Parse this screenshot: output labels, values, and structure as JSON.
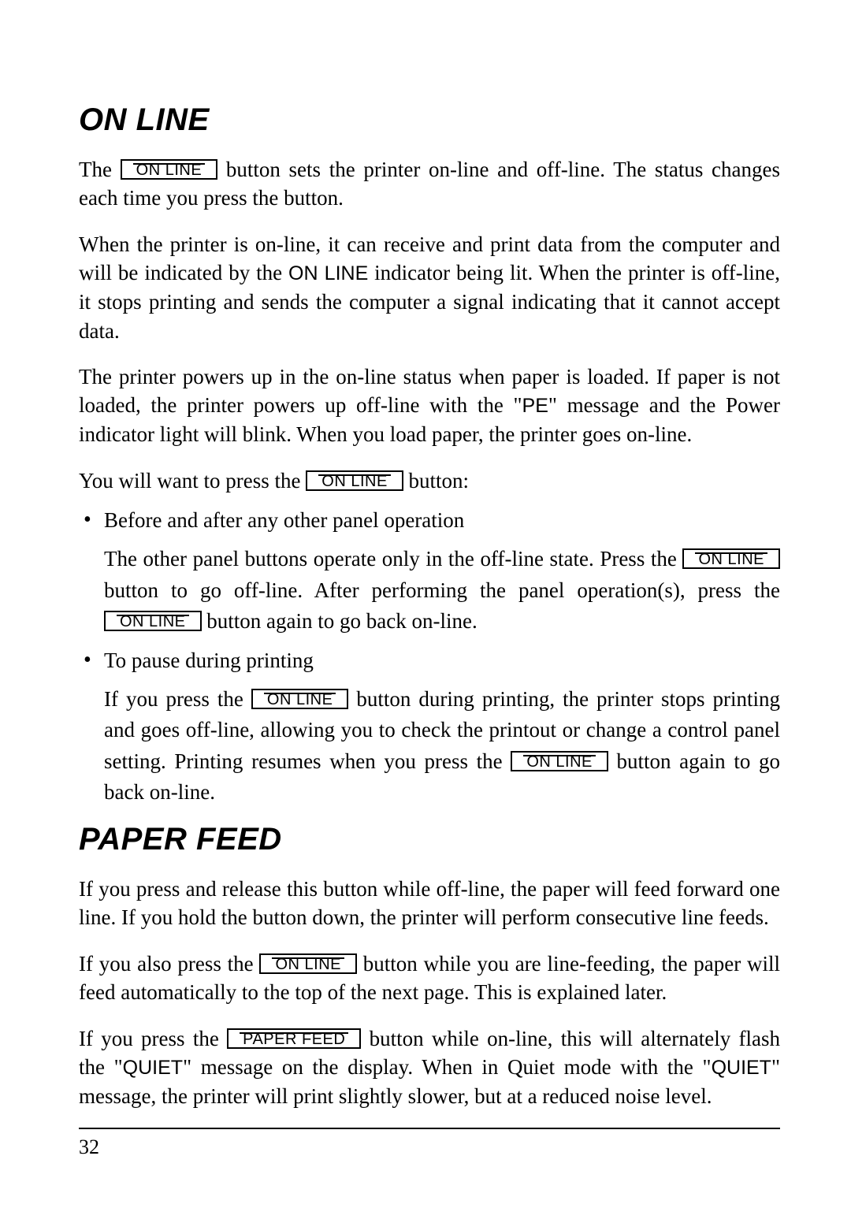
{
  "page": {
    "number": "32",
    "colors": {
      "text": "#000000",
      "background": "#ffffff",
      "rule": "#000000"
    },
    "typography": {
      "heading_font": "Arial",
      "heading_style": "italic",
      "heading_weight": 900,
      "heading_size_pt": 30,
      "body_font": "Times",
      "body_size_pt": 20,
      "sans_inline_font": "Arial"
    }
  },
  "buttons": {
    "online": "ON LINE",
    "paperfeed": "PAPER FEED"
  },
  "sans_terms": {
    "online_ind": "ON LINE",
    "pe": "PE",
    "quiet": "QUIET"
  },
  "section1": {
    "heading": "ON LINE",
    "p1a": "The ",
    "p1b": " button sets the printer on-line and off-line. The status changes each time you press the button.",
    "p2a": "When the printer is on-line, it can receive and print data from the computer and will be indicated by the ",
    "p2b": " indicator being lit. When the printer is off-line, it stops printing and sends the computer a signal indicating that it cannot accept data.",
    "p3a": "The printer powers up in the on-line status when paper is loaded. If paper is not loaded, the printer powers up off-line with the \"",
    "p3b": "\" message and the Power indicator light will blink. When you load paper, the printer goes on-line.",
    "p4a": "You will want to press the ",
    "p4b": " button:",
    "bullets": {
      "b1_title": "Before and after any other panel operation",
      "b1_body_a": "The other panel buttons operate only in the off-line state. Press the ",
      "b1_body_b": " button to go off-line. After performing the panel operation(s), press the ",
      "b1_body_c": " button again to go back on-line.",
      "b2_title": "To pause during printing",
      "b2_body_a": "If you press the ",
      "b2_body_b": " button during printing, the printer stops printing and goes off-line, allowing you to check the printout or change a control panel setting. Printing resumes when you press the ",
      "b2_body_c": " button again to go back on-line."
    }
  },
  "section2": {
    "heading": "PAPER FEED",
    "p1": "If you press and release this button while off-line, the paper will feed forward one line. If you hold the button down, the printer will perform consecutive line feeds.",
    "p2a": "If you also press the ",
    "p2b": " button while you are line-feeding, the paper will feed automatically to the top of the next page. This is explained later.",
    "p3a": "If you press the ",
    "p3b": " button while on-line, this will alternately flash the \"",
    "p3c": "\" message on the display. When in Quiet mode with the \"",
    "p3d": "\" message, the printer will print slightly slower, but at a reduced noise level."
  }
}
